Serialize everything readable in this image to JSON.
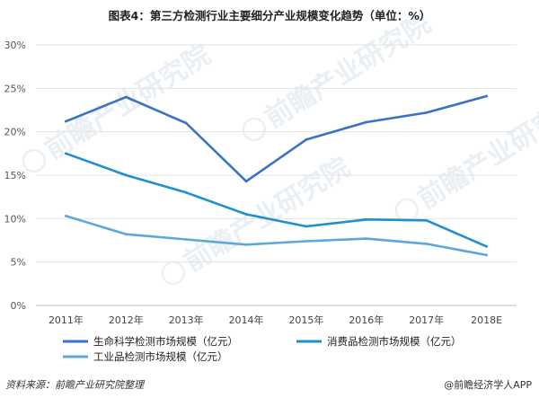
{
  "chart_data": {
    "type": "line",
    "title": "图表4：第三方检测行业主要细分产业规模变化趋势（单位：%）",
    "categories": [
      "2011年",
      "2012年",
      "2013年",
      "2014年",
      "2015年",
      "2016年",
      "2017年",
      "2018E"
    ],
    "ylim": [
      0,
      30
    ],
    "yticks": [
      "0%",
      "5%",
      "10%",
      "15%",
      "20%",
      "25%",
      "30%"
    ],
    "grid": true,
    "legend_position": "bottom",
    "series": [
      {
        "name": "生命科学检测市场规模（亿元）",
        "color": "#3a72c8",
        "values": [
          21.2,
          24.0,
          21.0,
          14.3,
          19.1,
          21.1,
          22.2,
          24.1
        ]
      },
      {
        "name": "消费品检测市场规模（亿元）",
        "color": "#1f8fcf",
        "values": [
          17.5,
          15.0,
          13.0,
          10.5,
          9.1,
          9.9,
          9.8,
          6.8
        ]
      },
      {
        "name": "工业品检测市场规模（亿元）",
        "color": "#5ba8df",
        "values": [
          10.3,
          8.2,
          7.6,
          7.0,
          7.4,
          7.7,
          7.1,
          5.8
        ]
      }
    ]
  },
  "footer": {
    "source": "资料来源：前瞻产业研究院整理",
    "brand": "@前瞻经济学人APP"
  },
  "watermark": "前瞻产业研究院"
}
